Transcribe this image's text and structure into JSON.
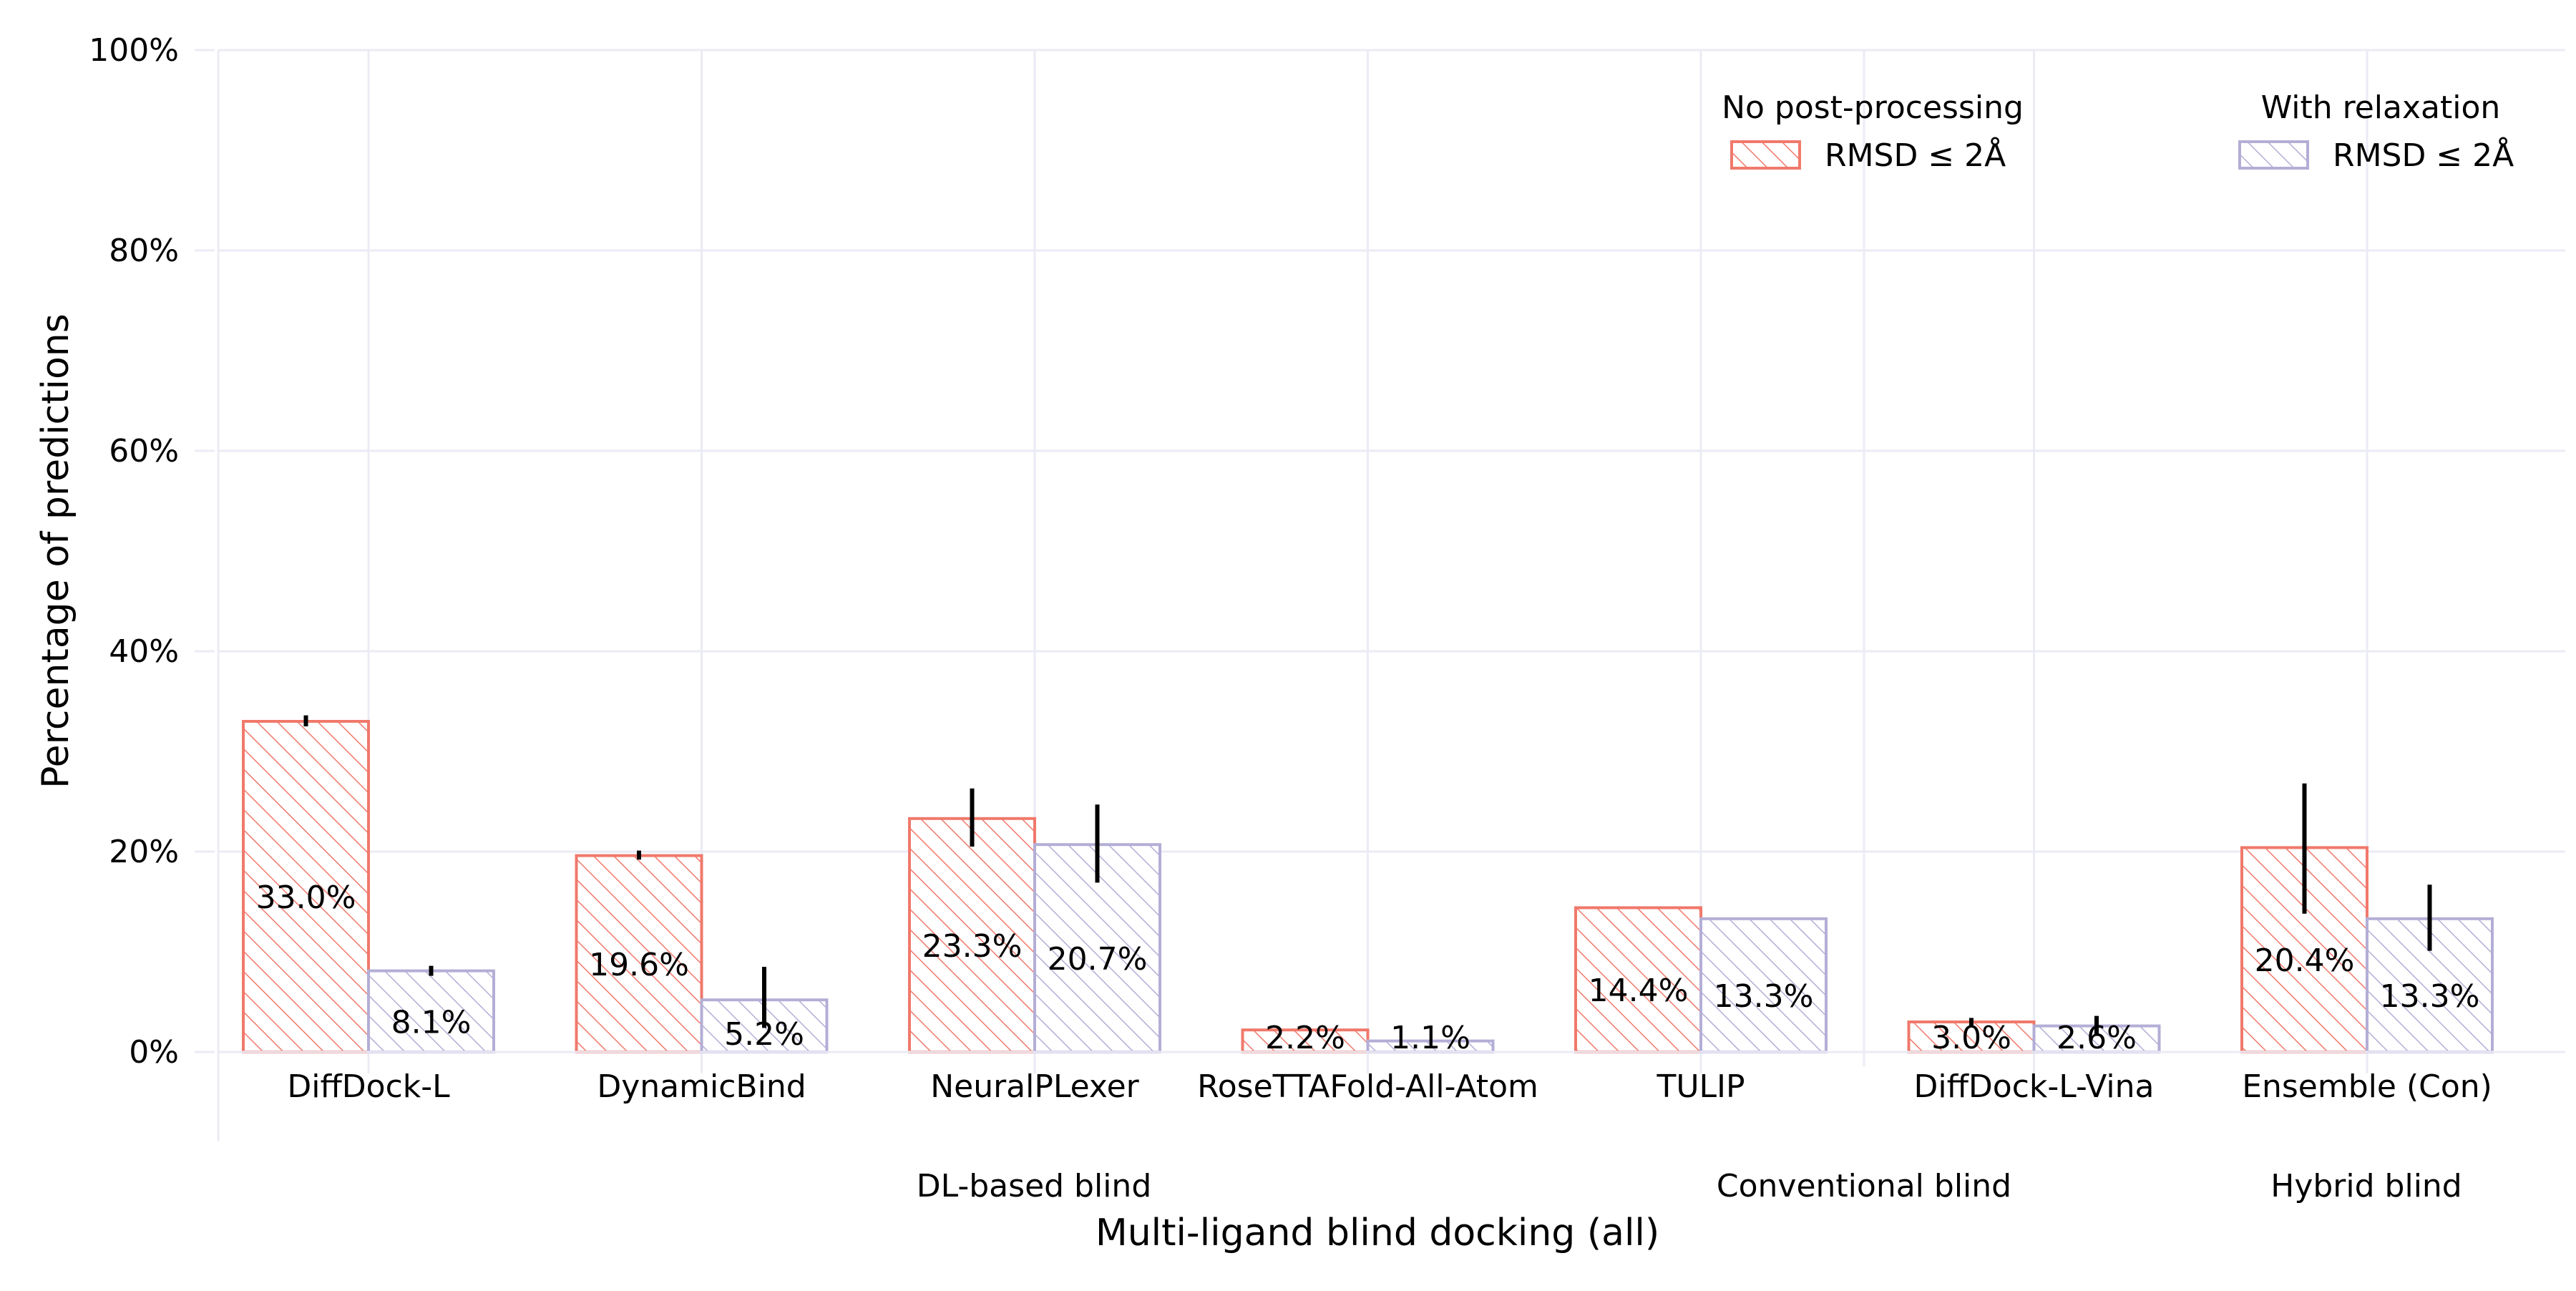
{
  "chart_data": {
    "type": "bar",
    "title": "",
    "xlabel": "Multi-ligand blind docking (all)",
    "ylabel": "Percentage of predictions",
    "ylim": [
      0,
      100
    ],
    "y_ticks": [
      "0%",
      "20%",
      "40%",
      "60%",
      "80%",
      "100%"
    ],
    "grid": true,
    "legend_position": "top-right",
    "categories": [
      "DiffDock-L",
      "DynamicBind",
      "NeuralPLexer",
      "RoseTTAFold-All-Atom",
      "TULIP",
      "DiffDock-L-Vina",
      "Ensemble (Con)"
    ],
    "groups": [
      {
        "label": "DL-based blind",
        "categories": [
          "DiffDock-L",
          "DynamicBind",
          "NeuralPLexer",
          "RoseTTAFold-All-Atom"
        ]
      },
      {
        "label": "Conventional blind",
        "categories": [
          "TULIP",
          "DiffDock-L-Vina"
        ]
      },
      {
        "label": "Hybrid blind",
        "categories": [
          "Ensemble (Con)"
        ]
      }
    ],
    "series": [
      {
        "legend_title": "No post-processing",
        "name": "RMSD ≤ 2Å",
        "color": "#f0796b",
        "values": [
          33.0,
          19.6,
          23.3,
          2.2,
          14.4,
          3.0,
          20.4
        ],
        "labels": [
          "33.0%",
          "19.6%",
          "23.3%",
          "2.2%",
          "14.4%",
          "3.0%",
          "20.4%"
        ],
        "error_low": [
          32.5,
          19.2,
          20.5,
          null,
          null,
          2.6,
          13.8
        ],
        "error_high": [
          33.6,
          20.1,
          26.3,
          null,
          null,
          3.4,
          26.8
        ]
      },
      {
        "legend_title": "With relaxation",
        "name": "RMSD ≤ 2Å",
        "color": "#b3aed6",
        "values": [
          8.1,
          5.2,
          20.7,
          1.1,
          13.3,
          2.6,
          13.3
        ],
        "labels": [
          "8.1%",
          "5.2%",
          "20.7%",
          "1.1%",
          "13.3%",
          "2.6%",
          "13.3%"
        ],
        "error_low": [
          7.6,
          2.4,
          16.9,
          null,
          null,
          1.6,
          10.1
        ],
        "error_high": [
          8.6,
          8.5,
          24.7,
          null,
          null,
          3.6,
          16.7
        ]
      }
    ]
  }
}
